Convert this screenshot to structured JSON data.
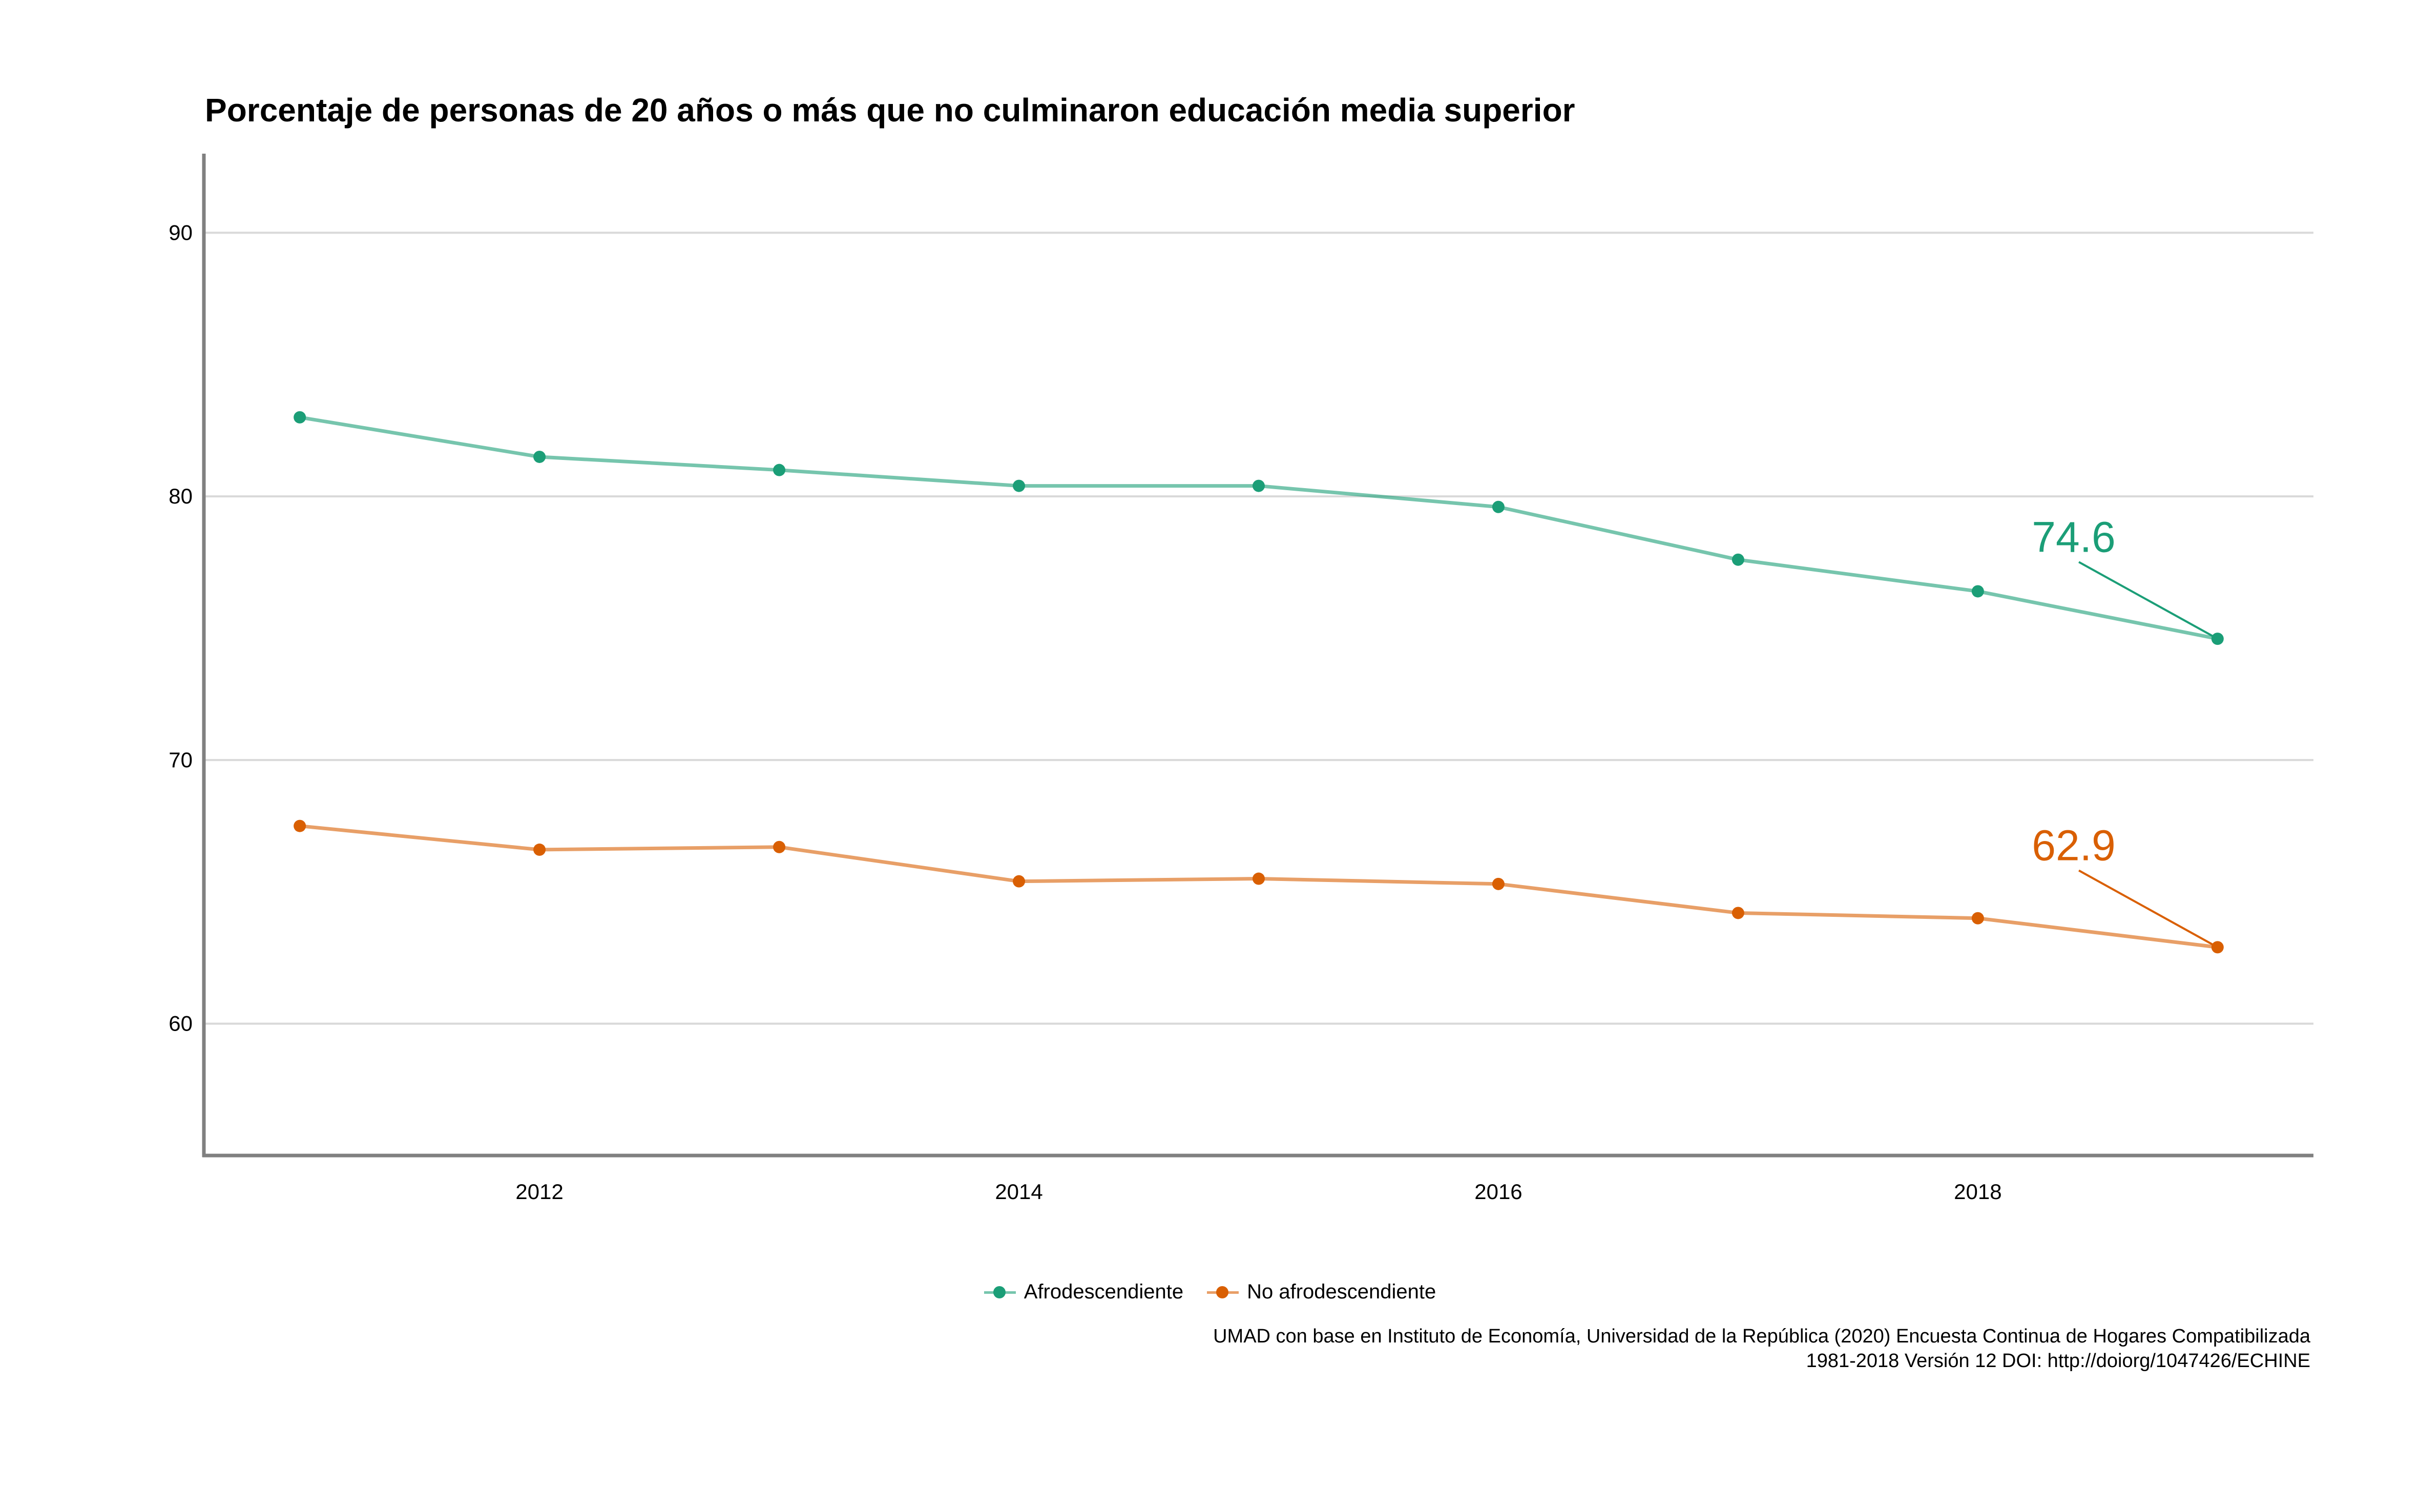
{
  "chart_data": {
    "type": "line",
    "title": "Porcentaje de personas de 20 años o más que no culminaron educación media superior",
    "xlabel": "",
    "ylabel": "",
    "x": [
      2011,
      2012,
      2013,
      2014,
      2015,
      2016,
      2017,
      2018,
      2019
    ],
    "x_ticks": [
      2012,
      2014,
      2016,
      2018
    ],
    "y_ticks": [
      60,
      70,
      80,
      90
    ],
    "xlim": [
      2010.6,
      2019.4
    ],
    "ylim": [
      55,
      93
    ],
    "grid": "horizontal",
    "legend_position": "bottom",
    "series": [
      {
        "name": "Afrodescendiente",
        "color": "#1b9e77",
        "values": [
          83.0,
          81.5,
          81.0,
          80.4,
          80.4,
          79.6,
          77.6,
          76.4,
          74.6
        ]
      },
      {
        "name": "No afrodescendiente",
        "color": "#d95f02",
        "values": [
          67.5,
          66.6,
          66.7,
          65.4,
          65.5,
          65.3,
          64.2,
          64.0,
          62.9
        ]
      }
    ],
    "annotations": [
      {
        "text": "74.6",
        "series": 0,
        "x": 2019,
        "y": 74.6,
        "label_x": 2018.4,
        "label_y": 77.9
      },
      {
        "text": "62.9",
        "series": 1,
        "x": 2019,
        "y": 62.9,
        "label_x": 2018.4,
        "label_y": 66.2
      }
    ]
  },
  "caption": {
    "line1": "UMAD con base en Instituto de Economía, Universidad de la República (2020) Encuesta Continua de Hogares Compatibilizada",
    "line2": "1981-2018 Versión 12 DOI: http://doiorg/1047426/ECHINE"
  }
}
